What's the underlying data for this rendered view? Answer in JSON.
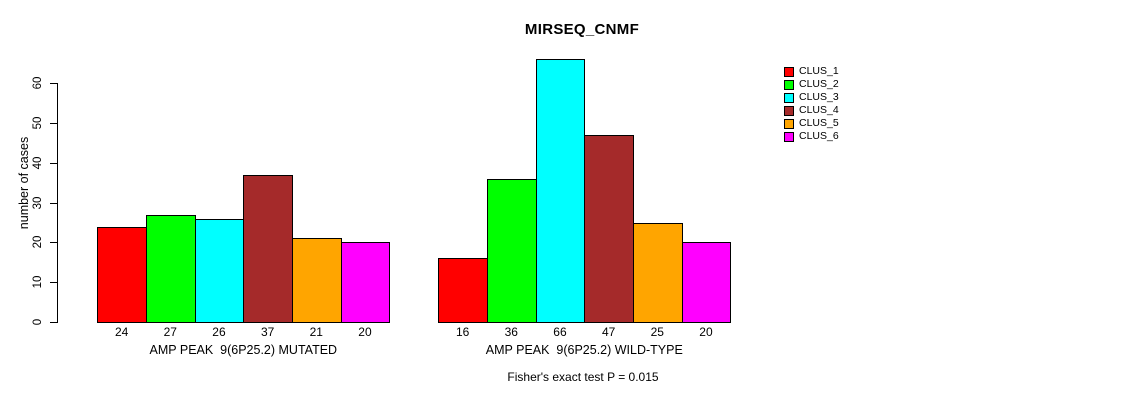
{
  "chart_data": {
    "type": "bar",
    "title": "MIRSEQ_CNMF",
    "ylabel": "number of cases",
    "annotation": "Fisher's exact test P = 0.015",
    "ylim": [
      0,
      66
    ],
    "yticks": [
      0,
      10,
      20,
      30,
      40,
      50,
      60
    ],
    "grid": false,
    "legend_position": "right",
    "categories": [
      "CLUS_1",
      "CLUS_2",
      "CLUS_3",
      "CLUS_4",
      "CLUS_5",
      "CLUS_6"
    ],
    "bar_colors": [
      "#FF0000",
      "#00FF00",
      "#00FFFF",
      "#A52A2A",
      "#FFA500",
      "#FF00FF"
    ],
    "groups": [
      {
        "label": "AMP PEAK  9(6P25.2) MUTATED",
        "values": [
          24,
          27,
          26,
          37,
          21,
          20
        ]
      },
      {
        "label": "AMP PEAK  9(6P25.2) WILD-TYPE",
        "values": [
          16,
          36,
          66,
          47,
          25,
          20
        ]
      }
    ],
    "legend": {
      "entries": [
        {
          "label": "CLUS_1",
          "color": "#FF0000"
        },
        {
          "label": "CLUS_2",
          "color": "#00FF00"
        },
        {
          "label": "CLUS_3",
          "color": "#00FFFF"
        },
        {
          "label": "CLUS_4",
          "color": "#A52A2A"
        },
        {
          "label": "CLUS_5",
          "color": "#FFA500"
        },
        {
          "label": "CLUS_6",
          "color": "#FF00FF"
        }
      ]
    }
  }
}
